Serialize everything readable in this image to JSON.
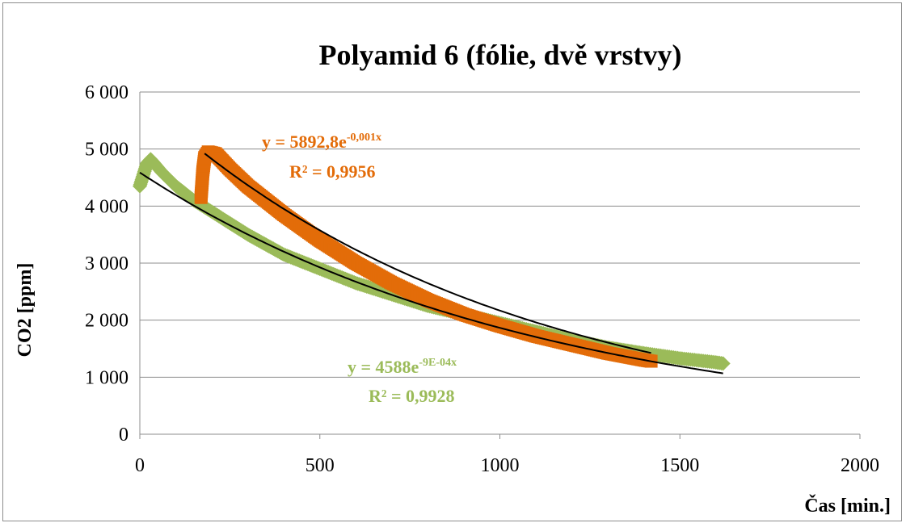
{
  "chart_data": {
    "type": "scatter",
    "title": "Polyamid 6 (fólie, dvě vrstvy)",
    "xlabel": "Čas [min.]",
    "ylabel": "CO2 [ppm]",
    "xlim": [
      0,
      2000
    ],
    "ylim": [
      0,
      6000
    ],
    "x_ticks": [
      "0",
      "500",
      "1000",
      "1500",
      "2000"
    ],
    "y_ticks": [
      "0",
      "1 000",
      "2 000",
      "3 000",
      "4 000",
      "5 000",
      "6 000"
    ],
    "grid": "horizontal",
    "legend": "none",
    "series": [
      {
        "color": "#9bbb59",
        "points": [
          [
            0,
            4350
          ],
          [
            10,
            4550
          ],
          [
            20,
            4750
          ],
          [
            30,
            4820
          ],
          [
            40,
            4750
          ],
          [
            60,
            4600
          ],
          [
            100,
            4350
          ],
          [
            150,
            4100
          ],
          [
            200,
            3900
          ],
          [
            300,
            3500
          ],
          [
            400,
            3150
          ],
          [
            500,
            2900
          ],
          [
            600,
            2650
          ],
          [
            700,
            2450
          ],
          [
            800,
            2250
          ],
          [
            900,
            2100
          ],
          [
            1000,
            1950
          ],
          [
            1100,
            1800
          ],
          [
            1200,
            1650
          ],
          [
            1300,
            1520
          ],
          [
            1400,
            1420
          ],
          [
            1500,
            1330
          ],
          [
            1600,
            1260
          ],
          [
            1620,
            1240
          ]
        ],
        "trendline": {
          "type": "exponential",
          "a": 4588,
          "b": -0.0009,
          "x_range": [
            0,
            1620
          ],
          "equation": "y = 4588e",
          "exponent": "-9E-04x",
          "r2": "R² = 0,9928"
        }
      },
      {
        "color": "#e36c09",
        "points": [
          [
            170,
            4150
          ],
          [
            175,
            4600
          ],
          [
            180,
            4850
          ],
          [
            190,
            4950
          ],
          [
            210,
            4920
          ],
          [
            250,
            4650
          ],
          [
            300,
            4350
          ],
          [
            350,
            4100
          ],
          [
            400,
            3850
          ],
          [
            500,
            3400
          ],
          [
            600,
            3000
          ],
          [
            700,
            2650
          ],
          [
            800,
            2350
          ],
          [
            900,
            2100
          ],
          [
            1000,
            1900
          ],
          [
            1100,
            1720
          ],
          [
            1200,
            1570
          ],
          [
            1300,
            1420
          ],
          [
            1400,
            1300
          ],
          [
            1420,
            1280
          ]
        ],
        "trendline": {
          "type": "exponential",
          "a": 5892.8,
          "b": -0.001,
          "x_range": [
            180,
            1420
          ],
          "equation": "y = 5892,8e",
          "exponent": "-0,001x",
          "r2": "R² = 0,9956"
        }
      }
    ]
  }
}
